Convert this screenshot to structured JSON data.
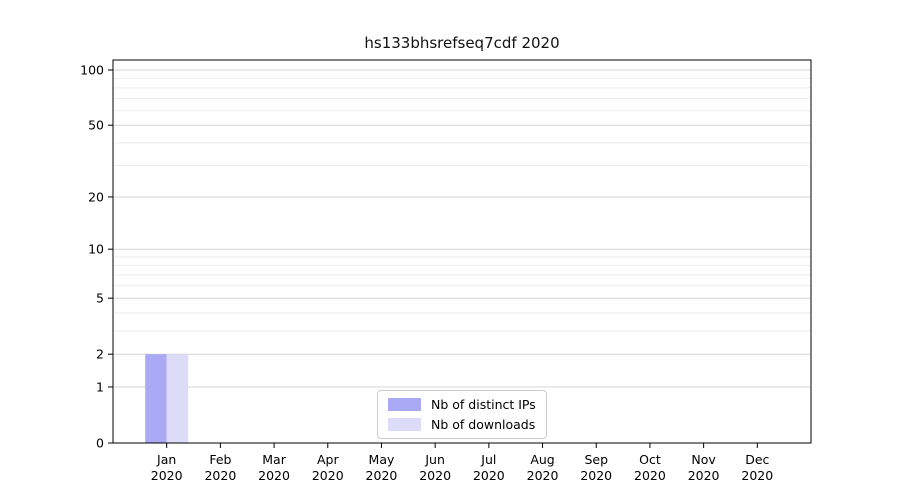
{
  "chart_data": {
    "type": "bar",
    "title": "hs133bhsrefseq7cdf 2020",
    "months": [
      "Jan",
      "Feb",
      "Mar",
      "Apr",
      "May",
      "Jun",
      "Jul",
      "Aug",
      "Sep",
      "Oct",
      "Nov",
      "Dec"
    ],
    "year_label": "2020",
    "categories": [
      "Jan 2020",
      "Feb 2020",
      "Mar 2020",
      "Apr 2020",
      "May 2020",
      "Jun 2020",
      "Jul 2020",
      "Aug 2020",
      "Sep 2020",
      "Oct 2020",
      "Nov 2020",
      "Dec 2020"
    ],
    "series": [
      {
        "name": "Nb of distinct IPs",
        "color": "#a9a9f5",
        "values": [
          2,
          0,
          0,
          0,
          0,
          0,
          0,
          0,
          0,
          0,
          0,
          0
        ]
      },
      {
        "name": "Nb of downloads",
        "color": "#dcdcf8",
        "values": [
          2,
          0,
          0,
          0,
          0,
          0,
          0,
          0,
          0,
          0,
          0,
          0
        ]
      }
    ],
    "y_scale": "log1p",
    "y_ticks": [
      0,
      1,
      2,
      5,
      10,
      20,
      50,
      100
    ],
    "y_minor_ticks": [
      3,
      4,
      6,
      7,
      8,
      9,
      30,
      40,
      60,
      70,
      80,
      90
    ],
    "ylim": [
      0,
      113
    ],
    "xlabel": "",
    "ylabel": "",
    "grid": true,
    "legend_position": "lower center",
    "colors": {
      "spine": "#000000",
      "major_grid": "#d6d6d6",
      "minor_grid": "#ededed",
      "tick_label": "#000000",
      "title": "#111111"
    }
  }
}
